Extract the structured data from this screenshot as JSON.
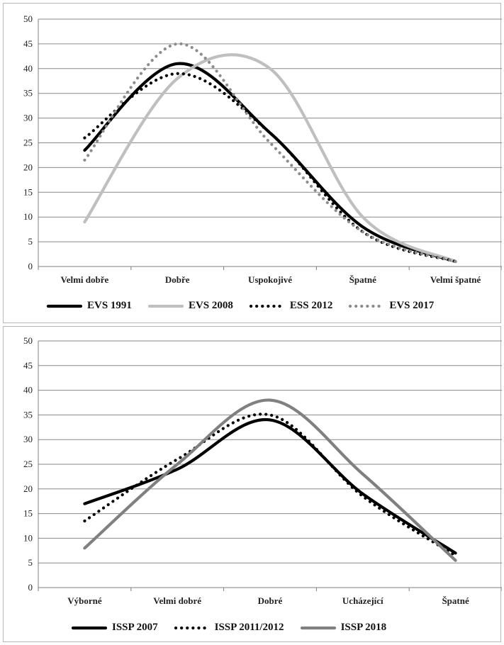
{
  "chart_data": [
    {
      "type": "line",
      "title": "",
      "xlabel": "",
      "ylabel": "",
      "categories": [
        "Velmi dobře",
        "Dobře",
        "Uspokojivé",
        "Špatné",
        "Velmi špatné"
      ],
      "ylim": [
        0,
        50
      ],
      "yticks": [
        0,
        5,
        10,
        15,
        20,
        25,
        30,
        35,
        40,
        45,
        50
      ],
      "grid": true,
      "smooth": true,
      "legend_position": "bottom",
      "series": [
        {
          "name": "EVS 1991",
          "values": [
            23.5,
            41,
            27,
            8,
            1
          ],
          "color": "#000000",
          "style": "solid"
        },
        {
          "name": "EVS 2008",
          "values": [
            9,
            38,
            40,
            10,
            1
          ],
          "color": "#bfbfbf",
          "style": "solid"
        },
        {
          "name": "ESS 2012",
          "values": [
            26,
            39,
            27,
            7,
            1
          ],
          "color": "#000000",
          "style": "dotted"
        },
        {
          "name": "EVS 2017",
          "values": [
            21.5,
            45,
            25,
            7,
            1
          ],
          "color": "#8c8c8c",
          "style": "dotted"
        }
      ]
    },
    {
      "type": "line",
      "title": "",
      "xlabel": "",
      "ylabel": "",
      "categories": [
        "Výborné",
        "Velmi dobré",
        "Dobré",
        "Ucházející",
        "Špatné"
      ],
      "ylim": [
        0,
        50
      ],
      "yticks": [
        0,
        5,
        10,
        15,
        20,
        25,
        30,
        35,
        40,
        45,
        50
      ],
      "grid": true,
      "smooth": true,
      "legend_position": "bottom",
      "series": [
        {
          "name": "ISSP 2007",
          "values": [
            17,
            24,
            34,
            19,
            7
          ],
          "color": "#000000",
          "style": "solid"
        },
        {
          "name": "ISSP 2011/2012",
          "values": [
            13.5,
            26,
            35,
            18.5,
            6.5
          ],
          "color": "#000000",
          "style": "dotted"
        },
        {
          "name": "ISSP 2018",
          "values": [
            8,
            25,
            38,
            23,
            5.5
          ],
          "color": "#808080",
          "style": "solid"
        }
      ]
    }
  ]
}
